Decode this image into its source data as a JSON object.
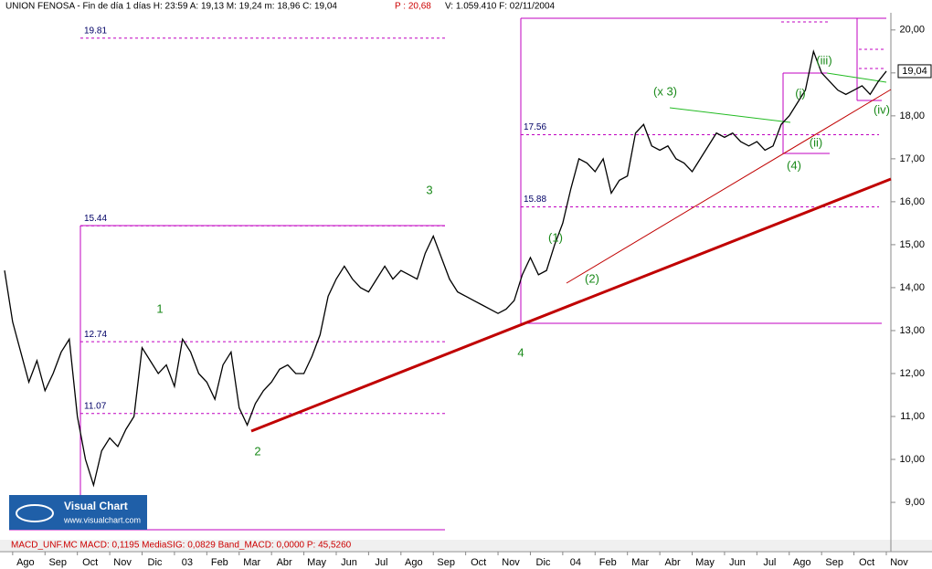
{
  "header": {
    "title": "UNION FENOSA - Fin de día 1 días  H: 23:59  A: 19,13  M: 19,24  m: 18,96  C: 19,04",
    "p": "P : 20,68",
    "rest": "V: 1.059.410  F: 02/11/2004"
  },
  "footer": {
    "macd": "MACD_UNF.MC  MACD: 0,1195  MediaSIG: 0,0829  Band_MACD: 0,0000  P: 45,5260"
  },
  "logo": {
    "name": "Visual Chart",
    "url": "www.visualchart.com"
  },
  "chart_data": {
    "type": "line",
    "color": "#000000",
    "categories": [
      null,
      "Ago",
      null,
      null,
      null,
      "Sep",
      null,
      null,
      null,
      "Oct",
      null,
      null,
      null,
      "Nov",
      null,
      null,
      null,
      "Dic",
      null,
      null,
      null,
      "03",
      null,
      null,
      null,
      "Feb",
      null,
      null,
      null,
      "Mar",
      null,
      null,
      null,
      "Abr",
      null,
      null,
      null,
      "May",
      null,
      null,
      null,
      "Jun",
      null,
      null,
      null,
      "Jul",
      null,
      null,
      null,
      "Ago",
      null,
      null,
      null,
      "Sep",
      null,
      null,
      null,
      "Oct",
      null,
      null,
      null,
      "Nov",
      null,
      null,
      null,
      "Dic",
      null,
      null,
      null,
      "04",
      null,
      null,
      null,
      "Feb",
      null,
      null,
      null,
      "Mar",
      null,
      null,
      null,
      "Abr",
      null,
      null,
      null,
      "May",
      null,
      null,
      null,
      "Jun",
      null,
      null,
      null,
      "Jul",
      null,
      null,
      null,
      "Ago",
      null,
      null,
      null,
      "Sep",
      null,
      null,
      null,
      "Oct",
      null,
      null,
      null,
      "Nov"
    ],
    "values": [
      14.4,
      13.2,
      12.5,
      11.8,
      12.3,
      11.6,
      12.0,
      12.5,
      12.8,
      11.0,
      10.0,
      9.4,
      10.2,
      10.5,
      10.3,
      10.7,
      11.0,
      12.6,
      12.3,
      12.0,
      12.2,
      11.7,
      12.8,
      12.5,
      12.0,
      11.8,
      11.4,
      12.2,
      12.5,
      11.2,
      10.8,
      11.3,
      11.6,
      11.8,
      12.1,
      12.2,
      12.0,
      12.0,
      12.4,
      12.9,
      13.8,
      14.2,
      14.5,
      14.2,
      14.0,
      13.9,
      14.2,
      14.5,
      14.2,
      14.4,
      14.3,
      14.2,
      14.8,
      15.2,
      14.7,
      14.2,
      13.9,
      13.8,
      13.7,
      13.6,
      13.5,
      13.4,
      13.5,
      13.7,
      14.3,
      14.7,
      14.3,
      14.4,
      15.0,
      15.5,
      16.3,
      17.0,
      16.9,
      16.7,
      17.0,
      16.2,
      16.5,
      16.6,
      17.6,
      17.8,
      17.3,
      17.2,
      17.3,
      17.0,
      16.9,
      16.7,
      17.0,
      17.3,
      17.6,
      17.5,
      17.6,
      17.4,
      17.3,
      17.4,
      17.2,
      17.3,
      17.8,
      18.0,
      18.3,
      18.6,
      19.5,
      19.0,
      18.8,
      18.6,
      18.5,
      18.6,
      18.7,
      18.5,
      18.8,
      19.04
    ],
    "ylim": [
      8.15,
      20.4
    ],
    "yticks": [
      {
        "value": 9,
        "label": "9,00"
      },
      {
        "value": 10,
        "label": "10,00"
      },
      {
        "value": 11,
        "label": "11,00"
      },
      {
        "value": 12,
        "label": "12,00"
      },
      {
        "value": 13,
        "label": "13,00"
      },
      {
        "value": 14,
        "label": "14,00"
      },
      {
        "value": 15,
        "label": "15,00"
      },
      {
        "value": 16,
        "label": "16,00"
      },
      {
        "value": 17,
        "label": "17,00"
      },
      {
        "value": 18,
        "label": "18,00"
      },
      {
        "value": 19,
        "label": "19,00"
      },
      {
        "value": 20,
        "label": "20,00"
      }
    ],
    "last_price": {
      "value": 19.04,
      "label": "19,04"
    },
    "levels": [
      19.81,
      17.56,
      15.88,
      15.44,
      12.74,
      11.07
    ],
    "annotations": [
      "3",
      "1",
      "2",
      "4",
      "(1)",
      "(2)",
      "(x 3)",
      "(4)",
      "(i)",
      "(ii)",
      "(iii)",
      "(iv)"
    ]
  }
}
